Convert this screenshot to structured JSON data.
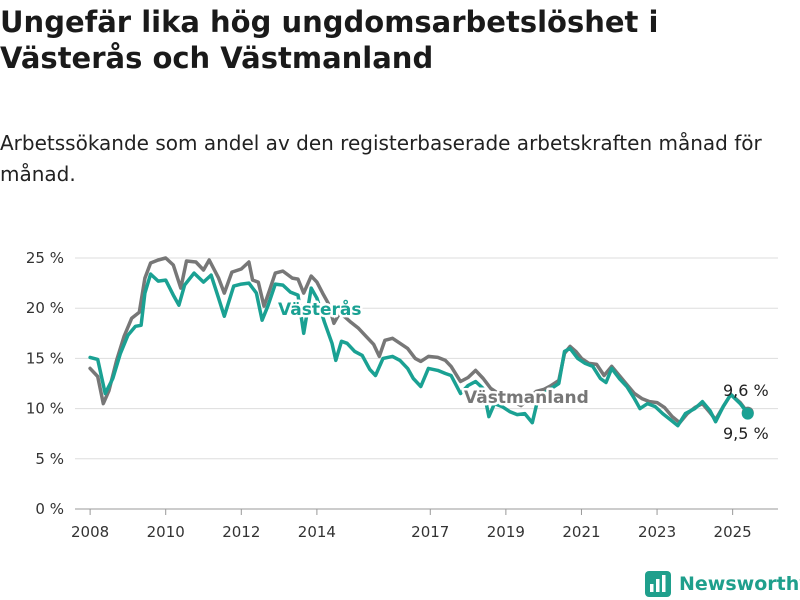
{
  "header": {
    "title": "Ungefär lika hög ungdomsarbetslöshet i Västerås och Västmanland",
    "subtitle": "Arbetssökande som andel av den registerbaserade arbetskraften månad för månad."
  },
  "brand": {
    "name": "Newsworthy",
    "icon": "bar-chart-icon",
    "color": "#1f9f8c"
  },
  "chart_data": {
    "type": "line",
    "ylim": [
      0,
      25
    ],
    "yticks": [
      0,
      5,
      10,
      15,
      20,
      25
    ],
    "ytick_labels": [
      "0 %",
      "5 %",
      "10 %",
      "15 %",
      "20 %",
      "25 %"
    ],
    "xlim": [
      2007.6,
      2026.2
    ],
    "xticks": [
      2008,
      2010,
      2012,
      2014,
      2017,
      2019,
      2021,
      2023,
      2025
    ],
    "xtick_labels": [
      "2008",
      "2010",
      "2012",
      "2014",
      "2017",
      "2019",
      "2021",
      "2023",
      "2025"
    ],
    "grid": true,
    "end_labels": [
      "9,6 %",
      "9,5 %"
    ],
    "series": [
      {
        "name": "Västmanland",
        "color": "#777777",
        "points": [
          [
            2008.0,
            14.0
          ],
          [
            2008.2,
            13.2
          ],
          [
            2008.35,
            10.5
          ],
          [
            2008.5,
            11.8
          ],
          [
            2008.7,
            14.8
          ],
          [
            2008.9,
            17.2
          ],
          [
            2009.1,
            19.0
          ],
          [
            2009.3,
            19.6
          ],
          [
            2009.45,
            23.0
          ],
          [
            2009.6,
            24.5
          ],
          [
            2009.8,
            24.8
          ],
          [
            2010.0,
            25.0
          ],
          [
            2010.2,
            24.3
          ],
          [
            2010.4,
            22.0
          ],
          [
            2010.55,
            24.7
          ],
          [
            2010.8,
            24.6
          ],
          [
            2011.0,
            23.8
          ],
          [
            2011.15,
            24.8
          ],
          [
            2011.4,
            23.0
          ],
          [
            2011.55,
            21.5
          ],
          [
            2011.75,
            23.6
          ],
          [
            2012.0,
            23.9
          ],
          [
            2012.2,
            24.6
          ],
          [
            2012.3,
            22.8
          ],
          [
            2012.45,
            22.6
          ],
          [
            2012.6,
            20.2
          ],
          [
            2012.75,
            21.8
          ],
          [
            2012.9,
            23.5
          ],
          [
            2013.1,
            23.7
          ],
          [
            2013.35,
            23.0
          ],
          [
            2013.5,
            22.9
          ],
          [
            2013.65,
            21.5
          ],
          [
            2013.85,
            23.2
          ],
          [
            2014.0,
            22.6
          ],
          [
            2014.15,
            21.5
          ],
          [
            2014.3,
            20.5
          ],
          [
            2014.45,
            18.5
          ],
          [
            2014.6,
            19.5
          ],
          [
            2014.75,
            19.1
          ],
          [
            2014.9,
            18.6
          ],
          [
            2015.1,
            18.0
          ],
          [
            2015.3,
            17.2
          ],
          [
            2015.5,
            16.4
          ],
          [
            2015.65,
            15.2
          ],
          [
            2015.8,
            16.8
          ],
          [
            2016.0,
            17.0
          ],
          [
            2016.2,
            16.5
          ],
          [
            2016.4,
            16.0
          ],
          [
            2016.6,
            15.0
          ],
          [
            2016.75,
            14.7
          ],
          [
            2016.95,
            15.2
          ],
          [
            2017.2,
            15.1
          ],
          [
            2017.4,
            14.8
          ],
          [
            2017.55,
            14.2
          ],
          [
            2017.8,
            12.7
          ],
          [
            2018.0,
            13.1
          ],
          [
            2018.2,
            13.8
          ],
          [
            2018.4,
            13.0
          ],
          [
            2018.6,
            12.0
          ],
          [
            2018.8,
            11.5
          ],
          [
            2019.0,
            11.0
          ],
          [
            2019.2,
            10.7
          ],
          [
            2019.4,
            10.3
          ],
          [
            2019.6,
            11.0
          ],
          [
            2019.8,
            11.7
          ],
          [
            2020.0,
            11.9
          ],
          [
            2020.2,
            12.3
          ],
          [
            2020.4,
            12.8
          ],
          [
            2020.55,
            15.5
          ],
          [
            2020.7,
            16.2
          ],
          [
            2020.85,
            15.7
          ],
          [
            2021.0,
            15.0
          ],
          [
            2021.2,
            14.5
          ],
          [
            2021.4,
            14.4
          ],
          [
            2021.6,
            13.3
          ],
          [
            2021.8,
            14.2
          ],
          [
            2022.0,
            13.3
          ],
          [
            2022.2,
            12.4
          ],
          [
            2022.4,
            11.5
          ],
          [
            2022.6,
            11.0
          ],
          [
            2022.8,
            10.7
          ],
          [
            2023.0,
            10.6
          ],
          [
            2023.2,
            10.1
          ],
          [
            2023.4,
            9.2
          ],
          [
            2023.6,
            8.6
          ],
          [
            2023.8,
            9.5
          ],
          [
            2024.0,
            10.1
          ],
          [
            2024.2,
            10.5
          ],
          [
            2024.4,
            9.6
          ],
          [
            2024.55,
            8.9
          ],
          [
            2024.75,
            10.2
          ],
          [
            2024.95,
            11.4
          ],
          [
            2025.2,
            10.6
          ],
          [
            2025.4,
            9.6
          ]
        ]
      },
      {
        "name": "Västerås",
        "color": "#1aa193",
        "points": [
          [
            2008.0,
            15.1
          ],
          [
            2008.2,
            14.9
          ],
          [
            2008.4,
            11.5
          ],
          [
            2008.6,
            13.0
          ],
          [
            2008.8,
            15.5
          ],
          [
            2009.0,
            17.3
          ],
          [
            2009.2,
            18.2
          ],
          [
            2009.35,
            18.3
          ],
          [
            2009.45,
            21.5
          ],
          [
            2009.6,
            23.4
          ],
          [
            2009.8,
            22.7
          ],
          [
            2010.0,
            22.8
          ],
          [
            2010.2,
            21.3
          ],
          [
            2010.35,
            20.3
          ],
          [
            2010.5,
            22.3
          ],
          [
            2010.75,
            23.5
          ],
          [
            2011.0,
            22.6
          ],
          [
            2011.2,
            23.3
          ],
          [
            2011.4,
            21.0
          ],
          [
            2011.55,
            19.2
          ],
          [
            2011.8,
            22.2
          ],
          [
            2012.0,
            22.4
          ],
          [
            2012.2,
            22.5
          ],
          [
            2012.4,
            21.5
          ],
          [
            2012.55,
            18.8
          ],
          [
            2012.7,
            20.2
          ],
          [
            2012.9,
            22.4
          ],
          [
            2013.1,
            22.3
          ],
          [
            2013.3,
            21.6
          ],
          [
            2013.5,
            21.3
          ],
          [
            2013.65,
            17.5
          ],
          [
            2013.85,
            22.0
          ],
          [
            2014.0,
            21.0
          ],
          [
            2014.2,
            18.6
          ],
          [
            2014.4,
            16.5
          ],
          [
            2014.5,
            14.8
          ],
          [
            2014.65,
            16.7
          ],
          [
            2014.8,
            16.5
          ],
          [
            2015.0,
            15.7
          ],
          [
            2015.2,
            15.3
          ],
          [
            2015.4,
            13.9
          ],
          [
            2015.55,
            13.3
          ],
          [
            2015.75,
            15.0
          ],
          [
            2016.0,
            15.2
          ],
          [
            2016.2,
            14.8
          ],
          [
            2016.4,
            14.0
          ],
          [
            2016.55,
            13.0
          ],
          [
            2016.75,
            12.2
          ],
          [
            2016.95,
            14.0
          ],
          [
            2017.2,
            13.8
          ],
          [
            2017.4,
            13.5
          ],
          [
            2017.55,
            13.3
          ],
          [
            2017.8,
            11.5
          ],
          [
            2018.0,
            12.3
          ],
          [
            2018.2,
            12.7
          ],
          [
            2018.4,
            12.0
          ],
          [
            2018.55,
            9.2
          ],
          [
            2018.7,
            10.5
          ],
          [
            2018.9,
            10.2
          ],
          [
            2019.1,
            9.7
          ],
          [
            2019.3,
            9.4
          ],
          [
            2019.5,
            9.5
          ],
          [
            2019.7,
            8.6
          ],
          [
            2019.85,
            11.0
          ],
          [
            2020.0,
            11.5
          ],
          [
            2020.2,
            12.0
          ],
          [
            2020.4,
            12.5
          ],
          [
            2020.55,
            15.7
          ],
          [
            2020.7,
            16.0
          ],
          [
            2020.9,
            15.0
          ],
          [
            2021.1,
            14.5
          ],
          [
            2021.3,
            14.2
          ],
          [
            2021.5,
            13.0
          ],
          [
            2021.65,
            12.6
          ],
          [
            2021.8,
            14.0
          ],
          [
            2022.0,
            13.0
          ],
          [
            2022.2,
            12.2
          ],
          [
            2022.4,
            11.0
          ],
          [
            2022.55,
            10.0
          ],
          [
            2022.75,
            10.5
          ],
          [
            2022.95,
            10.2
          ],
          [
            2023.15,
            9.5
          ],
          [
            2023.35,
            8.9
          ],
          [
            2023.55,
            8.3
          ],
          [
            2023.75,
            9.5
          ],
          [
            2024.0,
            10.0
          ],
          [
            2024.2,
            10.7
          ],
          [
            2024.4,
            9.8
          ],
          [
            2024.55,
            8.7
          ],
          [
            2024.75,
            10.2
          ],
          [
            2024.95,
            11.4
          ],
          [
            2025.2,
            10.5
          ],
          [
            2025.4,
            9.5
          ]
        ]
      }
    ]
  }
}
